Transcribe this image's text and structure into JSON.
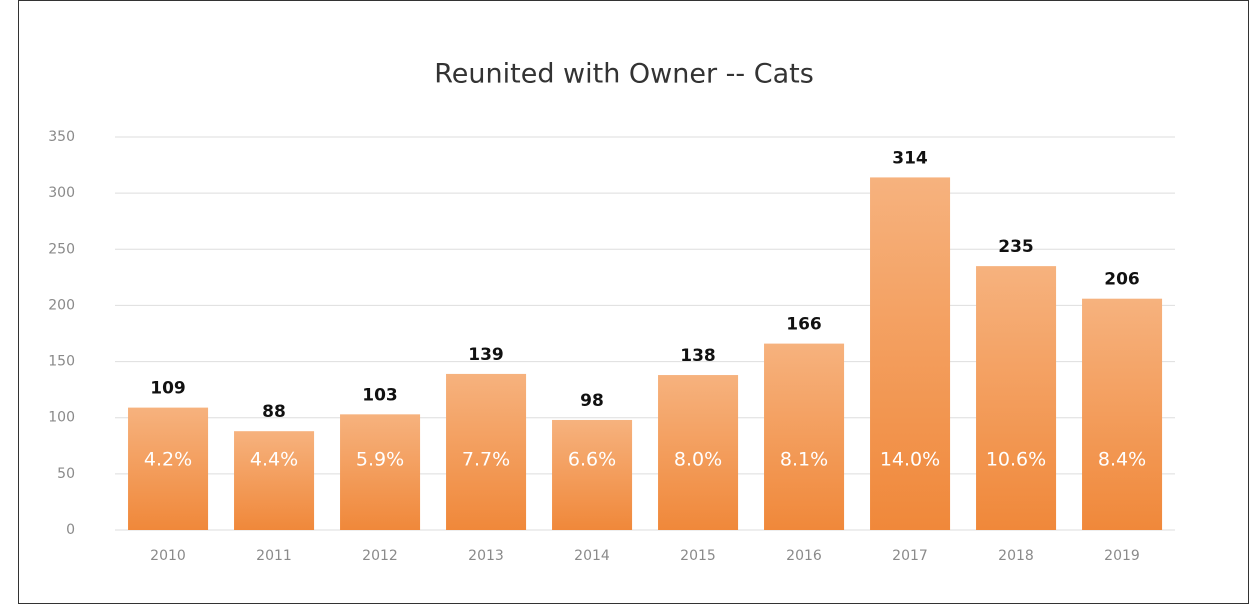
{
  "chart_data": {
    "type": "bar",
    "title": "Reunited with Owner -- Cats",
    "categories": [
      "2010",
      "2011",
      "2012",
      "2013",
      "2014",
      "2015",
      "2016",
      "2017",
      "2018",
      "2019"
    ],
    "values": [
      109,
      88,
      103,
      139,
      98,
      138,
      166,
      314,
      235,
      206
    ],
    "share_labels": [
      "4.2%",
      "4.4%",
      "5.9%",
      "7.7%",
      "6.6%",
      "8.0%",
      "8.1%",
      "14.0%",
      "10.6%",
      "8.4%"
    ],
    "gradient": [
      "#f6b27e",
      "#f0883a"
    ],
    "ylim": [
      0,
      350
    ],
    "yticks": [
      0,
      50,
      100,
      150,
      200,
      250,
      300,
      350
    ],
    "grid": true
  }
}
